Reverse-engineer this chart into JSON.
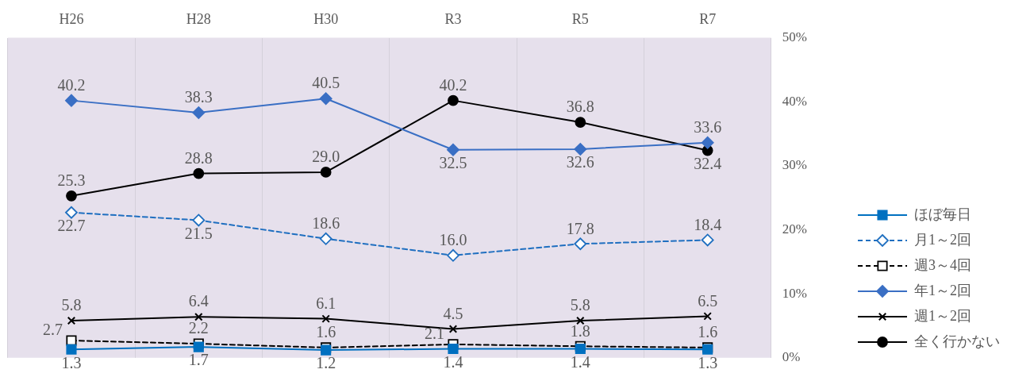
{
  "chart_data": {
    "type": "line",
    "categories": [
      "H26",
      "H28",
      "H30",
      "R3",
      "R5",
      "R7"
    ],
    "series": [
      {
        "name": "ほぼ毎日",
        "color": "#0070c0",
        "marker": "square",
        "line_style": "solid",
        "values": [
          1.3,
          1.7,
          1.2,
          1.4,
          1.4,
          1.3
        ],
        "value_labels": [
          "1.3",
          "1.7",
          "1.2",
          "1.4",
          "1.4",
          "1.3"
        ]
      },
      {
        "name": "月1～2回",
        "color": "#1f6fc0",
        "marker": "diamond",
        "line_style": "dashed",
        "values": [
          22.7,
          21.5,
          18.6,
          16.0,
          17.8,
          18.4
        ],
        "value_labels": [
          "22.7",
          "21.5",
          "18.6",
          "16.0",
          "17.8",
          "18.4"
        ]
      },
      {
        "name": "週3～4回",
        "color": "#000000",
        "marker": "square",
        "line_style": "dashed",
        "values": [
          2.7,
          2.2,
          1.6,
          2.1,
          1.8,
          1.6
        ],
        "value_labels": [
          "2.7",
          "2.2",
          "1.6",
          "2.1",
          "1.8",
          "1.6"
        ]
      },
      {
        "name": "年1～2回",
        "color": "#3a6fc4",
        "marker": "diamond",
        "line_style": "solid",
        "values": [
          40.2,
          38.3,
          40.5,
          32.5,
          32.6,
          33.6
        ],
        "value_labels": [
          "40.2",
          "38.3",
          "40.5",
          "32.5",
          "32.6",
          "33.6"
        ]
      },
      {
        "name": "週1～2回",
        "color": "#000000",
        "marker": "cross",
        "line_style": "solid",
        "values": [
          5.8,
          6.4,
          6.1,
          4.5,
          5.8,
          6.5
        ],
        "value_labels": [
          "5.8",
          "6.4",
          "6.1",
          "4.5",
          "5.8",
          "6.5"
        ]
      },
      {
        "name": "全く行かない",
        "color": "#000000",
        "marker": "circle",
        "line_style": "solid",
        "values": [
          25.3,
          28.8,
          29.0,
          40.2,
          36.8,
          32.4
        ],
        "value_labels": [
          "25.3",
          "28.8",
          "29.0",
          "40.2",
          "36.8",
          "32.4"
        ]
      }
    ],
    "ylim": [
      0,
      50
    ],
    "yticks": [
      {
        "value": 0,
        "label": "0%"
      },
      {
        "value": 10,
        "label": "10%"
      },
      {
        "value": 20,
        "label": "20%"
      },
      {
        "value": 30,
        "label": "30%"
      },
      {
        "value": 40,
        "label": "40%"
      },
      {
        "value": 50,
        "label": "50%"
      }
    ],
    "grid": "x",
    "legend": "bottom right"
  }
}
